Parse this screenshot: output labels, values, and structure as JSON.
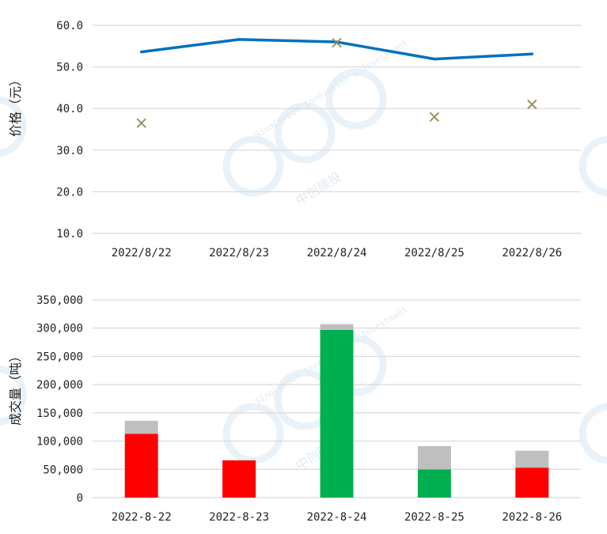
{
  "chart_data": [
    {
      "type": "line",
      "ylabel": "价格（元）",
      "categories": [
        "2022/8/22",
        "2022/8/23",
        "2022/8/24",
        "2022/8/25",
        "2022/8/26"
      ],
      "yticks": [
        "10.0",
        "20.0",
        "30.0",
        "40.0",
        "50.0",
        "60.0"
      ],
      "ylim": [
        10,
        60
      ],
      "grid": true,
      "series": [
        {
          "kind": "line",
          "color": "#0070c0",
          "values": [
            53.6,
            56.6,
            56.0,
            51.9,
            53.1
          ]
        },
        {
          "kind": "marker-x",
          "color": "#938953",
          "values": [
            36.5,
            null,
            55.8,
            38.0,
            41.0
          ]
        }
      ]
    },
    {
      "type": "bar",
      "stacked": true,
      "ylabel": "成交量（吨）",
      "categories": [
        "2022-8-22",
        "2022-8-23",
        "2022-8-24",
        "2022-8-25",
        "2022-8-26"
      ],
      "yticks": [
        "0",
        "50,000",
        "100,000",
        "150,000",
        "200,000",
        "250,000",
        "300,000",
        "350,000"
      ],
      "ylim": [
        0,
        350000
      ],
      "grid": true,
      "series": [
        {
          "values": [
            113000,
            66000,
            297000,
            50000,
            53000
          ],
          "colors": [
            "#ff0000",
            "#ff0000",
            "#00b050",
            "#00b050",
            "#ff0000"
          ]
        },
        {
          "values": [
            23000,
            0,
            10000,
            41000,
            30000
          ],
          "colors": [
            "#bfbfbf",
            "#bfbfbf",
            "#bfbfbf",
            "#bfbfbf",
            "#bfbfbf"
          ]
        }
      ]
    }
  ],
  "watermark": {
    "text_en": "SinoCarbon Innovation & Investment",
    "text_cn": "中创碳投",
    "color": "#dbeaf3"
  }
}
